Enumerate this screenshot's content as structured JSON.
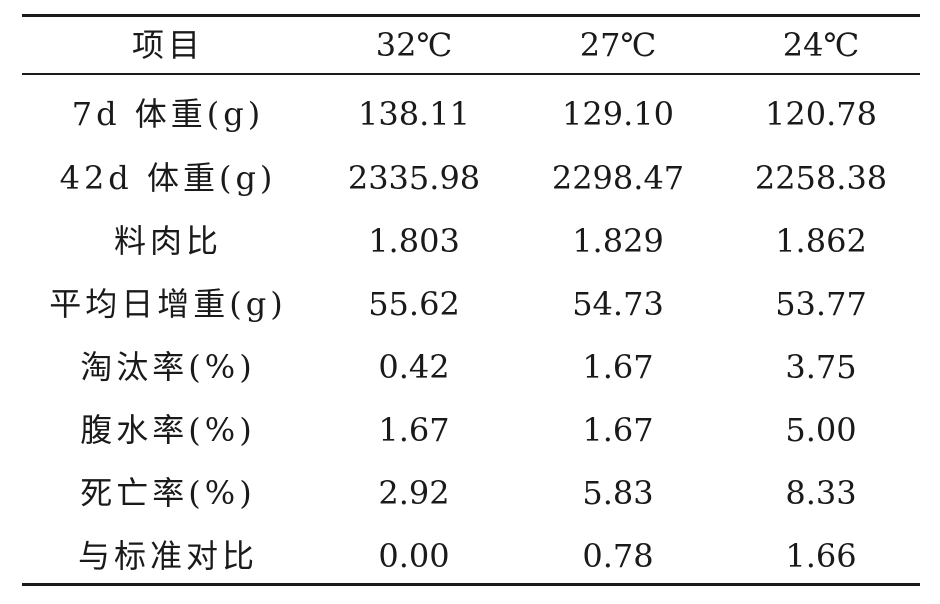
{
  "table": {
    "headers": [
      "项目",
      "32℃",
      "27℃",
      "24℃"
    ],
    "rows": [
      {
        "label": "7d 体重(g)",
        "values": [
          "138.11",
          "129.10",
          "120.78"
        ]
      },
      {
        "label": "42d 体重(g)",
        "values": [
          "2335.98",
          "2298.47",
          "2258.38"
        ]
      },
      {
        "label": "料肉比",
        "values": [
          "1.803",
          "1.829",
          "1.862"
        ]
      },
      {
        "label": "平均日增重(g)",
        "values": [
          "55.62",
          "54.73",
          "53.77"
        ]
      },
      {
        "label": "淘汰率(%)",
        "values": [
          "0.42",
          "1.67",
          "3.75"
        ]
      },
      {
        "label": "腹水率(%)",
        "values": [
          "1.67",
          "1.67",
          "5.00"
        ]
      },
      {
        "label": "死亡率(%)",
        "values": [
          "2.92",
          "5.83",
          "8.33"
        ]
      },
      {
        "label": "与标准对比",
        "values": [
          "0.00",
          "0.78",
          "1.66"
        ]
      }
    ]
  }
}
